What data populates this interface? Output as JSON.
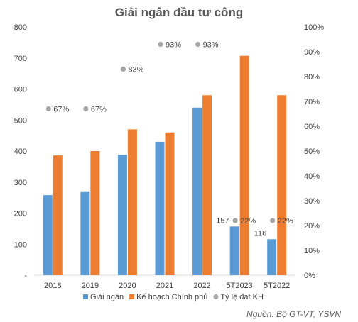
{
  "chart_data": {
    "type": "bar",
    "title": "Giải ngân đầu tư công",
    "categories": [
      "2018",
      "2019",
      "2020",
      "2021",
      "2022",
      "5T2023",
      "5T2022"
    ],
    "series": [
      {
        "name": "Giải ngân",
        "kind": "bar",
        "color": "#5B9BD5",
        "values": [
          258,
          268,
          388,
          430,
          540,
          157,
          116
        ]
      },
      {
        "name": "Kế hoạch Chính phủ",
        "kind": "bar",
        "color": "#ED7D31",
        "values": [
          386,
          400,
          470,
          460,
          580,
          707,
          580
        ]
      },
      {
        "name": "Tỷ lệ đạt KH",
        "kind": "scatter",
        "axis": "right",
        "color": "#A5A5A5",
        "values": [
          67,
          67,
          83,
          93,
          93,
          22,
          22
        ]
      }
    ],
    "data_labels": {
      "Giải ngân": [
        "",
        "",
        "",
        "",
        "",
        "157",
        "116"
      ],
      "Tỷ lệ đạt KH": [
        "67%",
        "67%",
        "83%",
        "93%",
        "93%",
        "22%",
        "22%"
      ]
    },
    "y_left": {
      "ylim": [
        0,
        800
      ],
      "ticks": [
        "-",
        "100",
        "200",
        "300",
        "400",
        "500",
        "600",
        "700",
        "800"
      ]
    },
    "y_right": {
      "ylim": [
        0,
        100
      ],
      "ticks": [
        "0%",
        "10%",
        "20%",
        "30%",
        "40%",
        "50%",
        "60%",
        "70%",
        "80%",
        "90%",
        "100%"
      ]
    },
    "grid": false,
    "legend_position": "bottom",
    "source": "Nguồn: Bộ GT-VT, YSVN"
  }
}
